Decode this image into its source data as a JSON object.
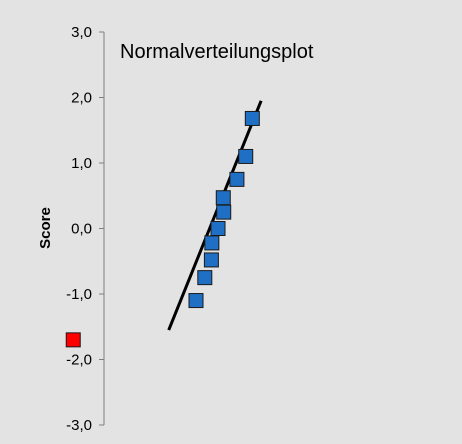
{
  "chart_data": {
    "type": "scatter",
    "title": "Normalverteilungsplot",
    "xlabel": "",
    "ylabel": "Score",
    "ylim": [
      -3.0,
      3.0
    ],
    "yticks": [
      3.0,
      2.0,
      1.0,
      0.0,
      -1.0,
      -2.0,
      -3.0
    ],
    "ytick_labels": [
      "3,0",
      "2,0",
      "1,0",
      "0,0",
      "-1,0",
      "-2,0",
      "-3,0"
    ],
    "grid": false,
    "colors": {
      "background": "#e3e3e3",
      "series": "#1f6fc5",
      "outlier": "#ff0000",
      "marker_edge": "#1a1a1a",
      "line": "#000000",
      "axis": "#7f7f7f"
    },
    "series": [
      {
        "points": [
          {
            "x": 2.0,
            "y": -1.1
          },
          {
            "x": 2.2,
            "y": -0.75
          },
          {
            "x": 2.35,
            "y": -0.48
          },
          {
            "x": 2.36,
            "y": -0.22
          },
          {
            "x": 2.5,
            "y": 0.0
          },
          {
            "x": 2.63,
            "y": 0.25
          },
          {
            "x": 2.62,
            "y": 0.47
          },
          {
            "x": 2.93,
            "y": 0.75
          },
          {
            "x": 3.13,
            "y": 1.1
          },
          {
            "x": 3.28,
            "y": 1.68
          }
        ]
      },
      {
        "points": [
          {
            "x": -0.79,
            "y": -1.7
          }
        ]
      }
    ],
    "reference_line": {
      "x": [
        1.38,
        3.48
      ],
      "y": [
        -1.55,
        1.95
      ]
    }
  }
}
